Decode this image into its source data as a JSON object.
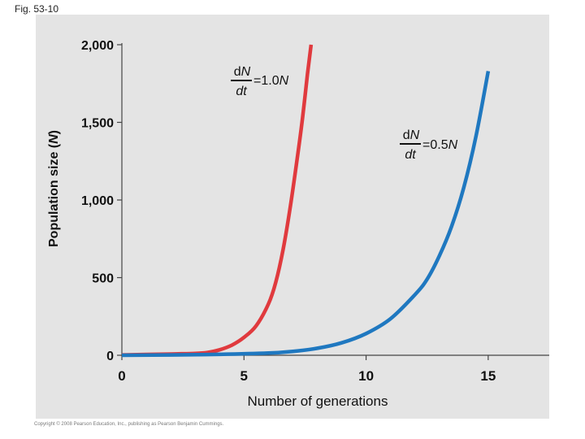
{
  "figure_label": "Fig. 53-10",
  "copyright": "Copyright © 2008 Pearson Education, Inc., publishing as Pearson Benjamin Cummings.",
  "colors": {
    "panel": "#e4e4e4",
    "axis": "#444444",
    "text": "#111111"
  },
  "chart_data": {
    "type": "line",
    "xlabel": "Number of generations",
    "ylabel_main": "Population size (",
    "ylabel_symbol": "N",
    "ylabel_close": ")",
    "xlim": [
      0,
      17.5
    ],
    "ylim": [
      0,
      2000
    ],
    "x_ticks": [
      0,
      5,
      10,
      15
    ],
    "x_tick_labels": [
      "0",
      "5",
      "10",
      "15"
    ],
    "y_ticks": [
      0,
      500,
      1000,
      1500,
      2000
    ],
    "y_tick_labels": [
      "0",
      "500",
      "1,000",
      "1,500",
      "2,000"
    ],
    "grid": false,
    "series": [
      {
        "color": "#e03a3e",
        "x": [
          0,
          1,
          2,
          3,
          3.5,
          4,
          4.5,
          5,
          5.5,
          6,
          6.3,
          6.6,
          6.9,
          7.2,
          7.4,
          7.6,
          7.75
        ],
        "y": [
          2,
          5,
          8,
          12,
          18,
          35,
          65,
          115,
          190,
          330,
          470,
          680,
          960,
          1290,
          1530,
          1810,
          2000
        ],
        "label_d": "d",
        "label_N_top": "N",
        "label_dt": "dt",
        "label_rhs": "=1.0",
        "label_rhs_N": "N"
      },
      {
        "color": "#1f78c0",
        "x": [
          0,
          2,
          4,
          6,
          7,
          8,
          9,
          10,
          11,
          12,
          12.5,
          13,
          13.5,
          14,
          14.5,
          15
        ],
        "y": [
          0,
          2,
          6,
          14,
          25,
          45,
          80,
          140,
          235,
          390,
          490,
          640,
          830,
          1080,
          1410,
          1830
        ],
        "label_d": "d",
        "label_N_top": "N",
        "label_dt": "dt",
        "label_rhs": "=0.5",
        "label_rhs_N": "N"
      }
    ]
  }
}
